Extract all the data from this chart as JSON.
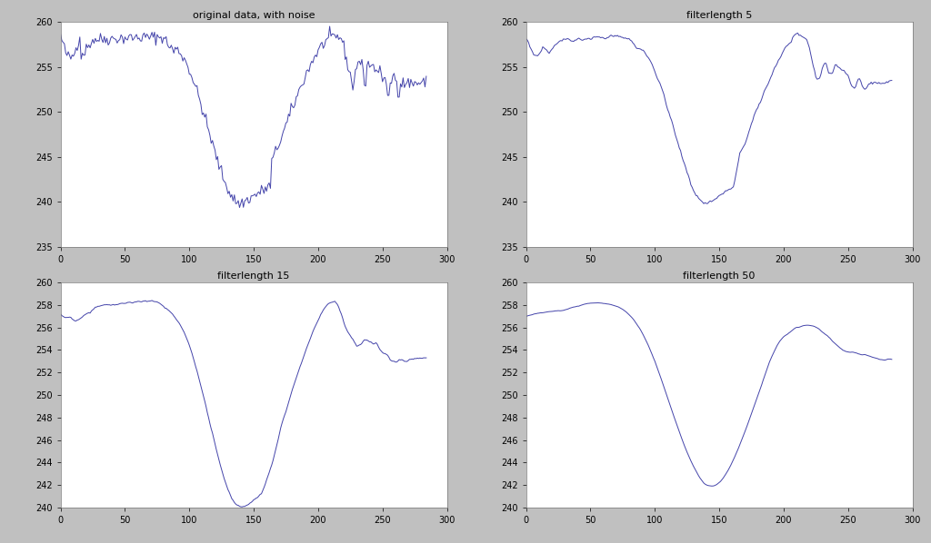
{
  "title_tl": "original data, with noise",
  "title_tr": "filterlength 5",
  "title_bl": "filterlength 15",
  "title_br": "filterlength 50",
  "xlim": [
    0,
    300
  ],
  "ylim_tl": [
    235,
    260
  ],
  "ylim_tr": [
    235,
    260
  ],
  "ylim_bl": [
    240,
    260
  ],
  "ylim_br": [
    240,
    260
  ],
  "xticks": [
    0,
    50,
    100,
    150,
    200,
    250,
    300
  ],
  "yticks_tl": [
    235,
    240,
    245,
    250,
    255,
    260
  ],
  "yticks_tr": [
    235,
    240,
    245,
    250,
    255,
    260
  ],
  "yticks_bl": [
    240,
    242,
    244,
    246,
    248,
    250,
    252,
    254,
    256,
    258,
    260
  ],
  "yticks_br": [
    240,
    242,
    244,
    246,
    248,
    250,
    252,
    254,
    256,
    258,
    260
  ],
  "line_color": "#4444aa",
  "background_color": "#c0c0c0",
  "axes_bg": "#ffffff",
  "title_fontsize": 8,
  "tick_fontsize": 7,
  "n_points": 285,
  "noise_std": 0.35
}
